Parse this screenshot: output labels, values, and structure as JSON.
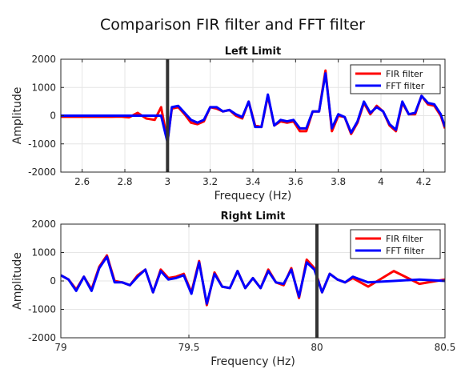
{
  "title": "Comparison FIR filter and FFT filter",
  "colors": {
    "fir": "#ff0000",
    "fft": "#0000ff",
    "limit_line": "#333333",
    "grid": "#e6e6e6"
  },
  "chart_data": [
    {
      "type": "line",
      "title": "Left Limit",
      "xlabel": "Frequecy (Hz)",
      "ylabel": "Amplitude",
      "xlim": [
        2.5,
        4.3
      ],
      "ylim": [
        -2000,
        2000
      ],
      "xticks": [
        2.6,
        2.8,
        3,
        3.2,
        3.4,
        3.6,
        3.8,
        4,
        4.2
      ],
      "xtick_labels": [
        "2.6",
        "2.8",
        "3",
        "3.2",
        "3.4",
        "3.6",
        "3.8",
        "4",
        "4.2"
      ],
      "yticks": [
        -2000,
        -1000,
        0,
        1000,
        2000
      ],
      "ytick_labels": [
        "-2000",
        "-1000",
        "0",
        "1000",
        "2000"
      ],
      "grid": true,
      "legend_position": "top-right",
      "vline": 3.0,
      "x": [
        2.5,
        2.54,
        2.6,
        2.64,
        2.7,
        2.74,
        2.78,
        2.82,
        2.86,
        2.9,
        2.94,
        2.97,
        3.0,
        3.02,
        3.05,
        3.08,
        3.11,
        3.14,
        3.17,
        3.2,
        3.23,
        3.26,
        3.29,
        3.32,
        3.35,
        3.38,
        3.41,
        3.44,
        3.47,
        3.5,
        3.53,
        3.56,
        3.59,
        3.62,
        3.65,
        3.68,
        3.71,
        3.74,
        3.77,
        3.8,
        3.83,
        3.86,
        3.89,
        3.92,
        3.95,
        3.98,
        4.01,
        4.04,
        4.07,
        4.1,
        4.13,
        4.16,
        4.19,
        4.22,
        4.25,
        4.28,
        4.3
      ],
      "series": [
        {
          "name": "FIR filter",
          "values": [
            -40,
            -40,
            -40,
            -40,
            -40,
            -40,
            -30,
            -60,
            100,
            -100,
            -150,
            300,
            -900,
            250,
            300,
            50,
            -250,
            -300,
            -200,
            300,
            250,
            150,
            200,
            0,
            -100,
            500,
            -350,
            -400,
            700,
            -350,
            -200,
            -250,
            -200,
            -550,
            -550,
            150,
            150,
            1600,
            -550,
            0,
            -50,
            -650,
            -250,
            450,
            50,
            350,
            150,
            -350,
            -550,
            450,
            50,
            50,
            700,
            400,
            350,
            0,
            -450
          ]
        },
        {
          "name": "FFT filter",
          "values": [
            0,
            0,
            0,
            0,
            0,
            0,
            0,
            0,
            0,
            0,
            0,
            0,
            -950,
            300,
            350,
            100,
            -150,
            -250,
            -150,
            300,
            300,
            150,
            200,
            50,
            -50,
            500,
            -400,
            -400,
            750,
            -350,
            -150,
            -200,
            -150,
            -450,
            -450,
            150,
            150,
            1500,
            -450,
            50,
            -50,
            -600,
            -200,
            500,
            100,
            300,
            150,
            -300,
            -500,
            500,
            50,
            100,
            700,
            450,
            400,
            50,
            -400
          ]
        }
      ]
    },
    {
      "type": "line",
      "title": "Right Limit",
      "xlabel": "Frequency (Hz)",
      "ylabel": "Amplitude",
      "xlim": [
        79,
        80.5
      ],
      "ylim": [
        -2000,
        2000
      ],
      "xticks": [
        79,
        79.5,
        80,
        80.5
      ],
      "xtick_labels": [
        "79",
        "79.5",
        "80",
        "80.5"
      ],
      "yticks": [
        -2000,
        -1000,
        0,
        1000,
        2000
      ],
      "ytick_labels": [
        "-2000",
        "-1000",
        "0",
        "1000",
        "2000"
      ],
      "grid": true,
      "legend_position": "top-right",
      "vline": 80.0,
      "x": [
        79.0,
        79.03,
        79.06,
        79.09,
        79.12,
        79.15,
        79.18,
        79.21,
        79.24,
        79.27,
        79.3,
        79.33,
        79.36,
        79.39,
        79.42,
        79.45,
        79.48,
        79.51,
        79.54,
        79.57,
        79.6,
        79.63,
        79.66,
        79.69,
        79.72,
        79.75,
        79.78,
        79.81,
        79.84,
        79.87,
        79.9,
        79.93,
        79.96,
        79.99,
        80.02,
        80.05,
        80.08,
        80.11,
        80.14,
        80.2,
        80.3,
        80.4,
        80.5
      ],
      "series": [
        {
          "name": "FIR filter",
          "values": [
            200,
            50,
            -300,
            150,
            -300,
            500,
            900,
            0,
            -50,
            -150,
            200,
            400,
            -400,
            400,
            100,
            150,
            250,
            -400,
            700,
            -850,
            300,
            -200,
            -250,
            350,
            -250,
            100,
            -250,
            400,
            -50,
            -150,
            450,
            -600,
            750,
            450,
            -400,
            250,
            50,
            -50,
            100,
            -200,
            350,
            -100,
            50
          ]
        },
        {
          "name": "FFT filter",
          "values": [
            200,
            50,
            -350,
            150,
            -350,
            450,
            850,
            -50,
            -50,
            -150,
            150,
            400,
            -400,
            350,
            50,
            100,
            200,
            -450,
            650,
            -800,
            250,
            -200,
            -250,
            350,
            -250,
            100,
            -250,
            350,
            -50,
            -100,
            400,
            -550,
            650,
            400,
            -400,
            250,
            50,
            -50,
            150,
            -50,
            0,
            50,
            0
          ]
        }
      ]
    }
  ]
}
